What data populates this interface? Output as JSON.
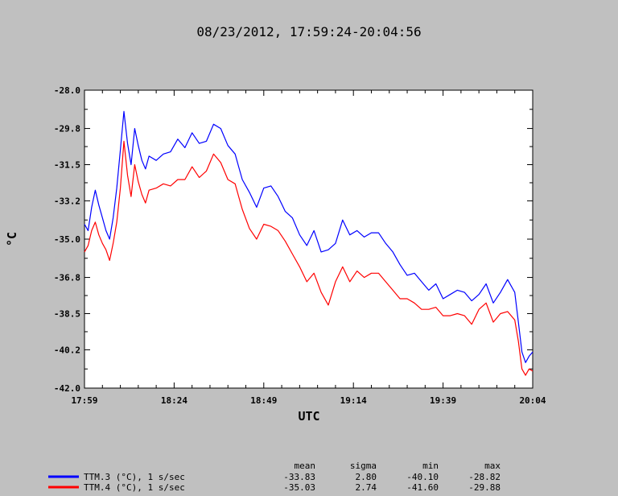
{
  "chart_data": {
    "type": "line",
    "title": "08/23/2012, 17:59:24-20:04:56",
    "xlabel": "UTC",
    "ylabel": "°C",
    "x_ticks": [
      "17:59",
      "18:24",
      "18:49",
      "19:14",
      "19:39",
      "20:04"
    ],
    "x_tick_minutes": [
      0,
      25,
      50,
      75,
      100,
      125
    ],
    "xlim_minutes": [
      0,
      125
    ],
    "y_ticks": [
      "-28.0",
      "-29.8",
      "-31.5",
      "-33.2",
      "-35.0",
      "-36.8",
      "-38.5",
      "-40.2",
      "-42.0"
    ],
    "ylim": [
      -42.0,
      -28.0
    ],
    "grid": false,
    "series": [
      {
        "name": "TTM.3 (°C), 1 s/sec",
        "color": "#0000ff",
        "x": [
          0,
          1,
          2,
          3,
          4,
          5,
          6,
          7,
          8,
          9,
          10,
          11,
          12,
          13,
          14,
          15,
          16,
          17,
          18,
          20,
          22,
          24,
          26,
          28,
          30,
          32,
          34,
          36,
          38,
          40,
          42,
          43,
          44,
          46,
          48,
          50,
          52,
          54,
          56,
          58,
          60,
          62,
          64,
          66,
          68,
          70,
          72,
          74,
          76,
          78,
          80,
          82,
          84,
          86,
          88,
          90,
          92,
          94,
          96,
          98,
          100,
          102,
          104,
          106,
          108,
          110,
          112,
          114,
          116,
          118,
          120,
          121,
          122,
          123,
          124,
          125
        ],
        "y": [
          -34.3,
          -34.6,
          -33.5,
          -32.7,
          -33.4,
          -34.0,
          -34.6,
          -35.0,
          -34.0,
          -32.6,
          -30.8,
          -29.0,
          -30.5,
          -31.5,
          -29.8,
          -30.6,
          -31.3,
          -31.7,
          -31.1,
          -31.3,
          -31.0,
          -30.9,
          -30.3,
          -30.7,
          -30.0,
          -30.5,
          -30.4,
          -29.6,
          -29.8,
          -30.6,
          -31.0,
          -31.6,
          -32.2,
          -32.8,
          -33.5,
          -32.6,
          -32.5,
          -33.0,
          -33.7,
          -34.0,
          -34.8,
          -35.3,
          -34.6,
          -35.6,
          -35.5,
          -35.2,
          -34.1,
          -34.8,
          -34.6,
          -34.9,
          -34.7,
          -34.7,
          -35.2,
          -35.6,
          -36.2,
          -36.7,
          -36.6,
          -37.0,
          -37.4,
          -37.1,
          -37.8,
          -37.6,
          -37.4,
          -37.5,
          -37.9,
          -37.6,
          -37.1,
          -38.0,
          -37.5,
          -36.9,
          -37.5,
          -38.9,
          -40.3,
          -40.8,
          -40.5,
          -40.3
        ]
      },
      {
        "name": "TTM.4 (°C), 1 s/sec",
        "color": "#ff0000",
        "x": [
          0,
          1,
          2,
          3,
          4,
          5,
          6,
          7,
          8,
          9,
          10,
          11,
          12,
          13,
          14,
          15,
          16,
          17,
          18,
          20,
          22,
          24,
          26,
          28,
          30,
          32,
          34,
          36,
          38,
          40,
          42,
          43,
          44,
          46,
          48,
          50,
          52,
          54,
          56,
          58,
          60,
          62,
          64,
          66,
          68,
          70,
          72,
          74,
          76,
          78,
          80,
          82,
          84,
          86,
          88,
          90,
          92,
          94,
          96,
          98,
          100,
          102,
          104,
          106,
          108,
          110,
          112,
          114,
          116,
          118,
          120,
          121,
          122,
          123,
          124,
          125
        ],
        "y": [
          -35.6,
          -35.3,
          -34.6,
          -34.2,
          -34.8,
          -35.2,
          -35.5,
          -36.0,
          -35.2,
          -34.2,
          -32.6,
          -30.4,
          -32.0,
          -33.0,
          -31.5,
          -32.3,
          -32.9,
          -33.3,
          -32.7,
          -32.6,
          -32.4,
          -32.5,
          -32.2,
          -32.2,
          -31.6,
          -32.1,
          -31.8,
          -31.0,
          -31.4,
          -32.2,
          -32.4,
          -33.0,
          -33.6,
          -34.5,
          -35.0,
          -34.3,
          -34.4,
          -34.6,
          -35.1,
          -35.7,
          -36.3,
          -37.0,
          -36.6,
          -37.5,
          -38.1,
          -37.0,
          -36.3,
          -37.0,
          -36.5,
          -36.8,
          -36.6,
          -36.6,
          -37.0,
          -37.4,
          -37.8,
          -37.8,
          -38.0,
          -38.3,
          -38.3,
          -38.2,
          -38.6,
          -38.6,
          -38.5,
          -38.6,
          -39.0,
          -38.3,
          -38.0,
          -38.9,
          -38.5,
          -38.4,
          -38.8,
          -39.8,
          -41.1,
          -41.4,
          -41.1,
          -41.2
        ]
      }
    ],
    "stats": {
      "headers": [
        "mean",
        "sigma",
        "min",
        "max"
      ],
      "rows": [
        {
          "legend": "TTM.3 (°C), 1 s/sec",
          "mean": "-33.83",
          "sigma": "2.80",
          "min": "-40.10",
          "max": "-28.82"
        },
        {
          "legend": "TTM.4 (°C), 1 s/sec",
          "mean": "-35.03",
          "sigma": "2.74",
          "min": "-41.60",
          "max": "-29.88"
        }
      ]
    }
  }
}
